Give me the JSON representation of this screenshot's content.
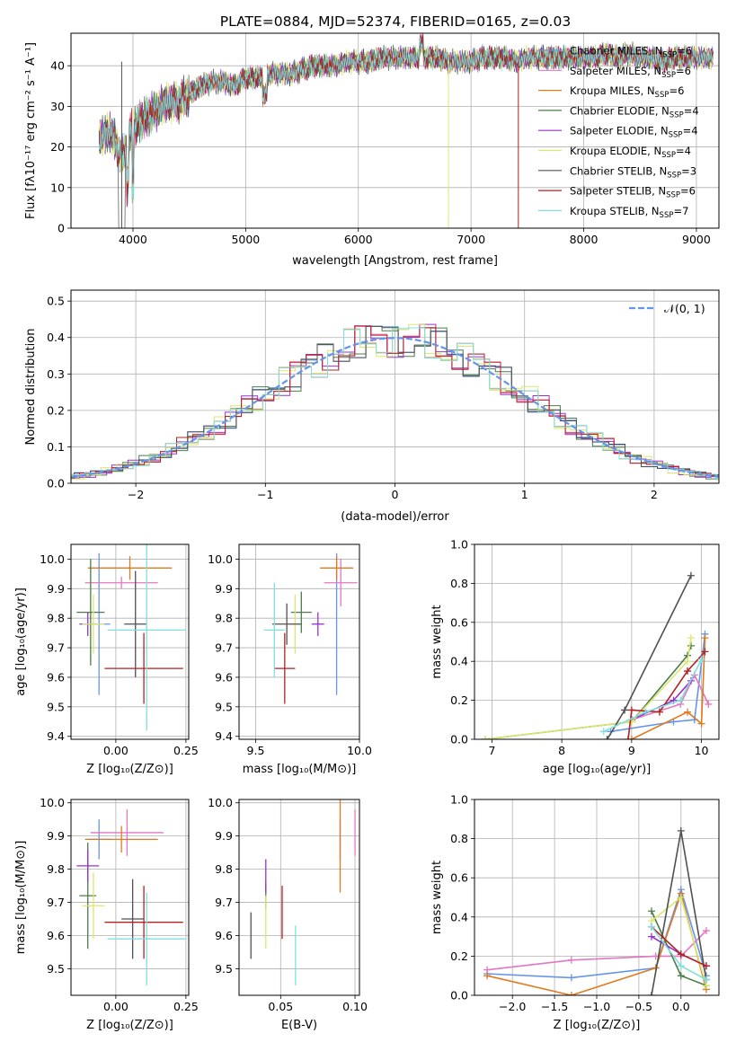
{
  "figure": {
    "title": "PLATE=0884, MJD=52374, FIBERID=0165, z=0.03"
  },
  "colors": {
    "Chabrier MILES": "#6495ed",
    "Salpeter MILES": "#e377c2",
    "Kroupa MILES": "#e07a20",
    "Chabrier ELODIE": "#4a7d4a",
    "Salpeter ELODIE": "#9932cc",
    "Kroupa ELODIE": "#dbe76e",
    "Chabrier STELIB": "#505050",
    "Salpeter STELIB": "#b22222",
    "Kroupa STELIB": "#7fdfdf"
  },
  "chart_data": [
    {
      "type": "line",
      "panel": "spectrum",
      "title": "PLATE=0884, MJD=52374, FIBERID=0165, z=0.03",
      "xlabel": "wavelength [Angstrom, rest frame]",
      "ylabel": "Flux [fλ10⁻¹⁷ erg cm⁻² s⁻¹ A⁻¹]",
      "xlim": [
        3450,
        9200
      ],
      "ylim": [
        0,
        48
      ],
      "xticks": [
        4000,
        5000,
        6000,
        7000,
        8000,
        9000
      ],
      "yticks": [
        0,
        10,
        20,
        30,
        40
      ],
      "legend_position": "top-right",
      "legend": [
        {
          "label": "Chabrier MILES, N",
          "sub": "SSP",
          "suffix": "=6"
        },
        {
          "label": "Salpeter MILES, N",
          "sub": "SSP",
          "suffix": "=6"
        },
        {
          "label": "Kroupa MILES, N",
          "sub": "SSP",
          "suffix": "=6"
        },
        {
          "label": "Chabrier ELODIE, N",
          "sub": "SSP",
          "suffix": "=4"
        },
        {
          "label": "Salpeter ELODIE, N",
          "sub": "SSP",
          "suffix": "=4"
        },
        {
          "label": "Kroupa ELODIE, N",
          "sub": "SSP",
          "suffix": "=4"
        },
        {
          "label": "Chabrier STELIB, N",
          "sub": "SSP",
          "suffix": "=3"
        },
        {
          "label": "Salpeter STELIB, N",
          "sub": "SSP",
          "suffix": "=6"
        },
        {
          "label": "Kroupa STELIB, N",
          "sub": "SSP",
          "suffix": "=7"
        }
      ],
      "series_x": [
        3700,
        3800,
        3900,
        4000,
        4100,
        4200,
        4300,
        4400,
        4500,
        4600,
        4700,
        4800,
        4900,
        5000,
        5100,
        5200,
        5300,
        5400,
        5500,
        5600,
        5700,
        5800,
        5900,
        6000,
        6100,
        6200,
        6300,
        6400,
        6500,
        6600,
        6700,
        6800,
        6900,
        7000,
        7100,
        7200,
        7300,
        7400,
        7500,
        7600,
        7700,
        7800,
        7900,
        8000,
        8100,
        8200,
        8300,
        8400,
        8500,
        8600,
        8700,
        8800,
        8900,
        9000,
        9100
      ],
      "series_y": [
        22,
        24,
        17,
        25,
        27,
        29,
        31,
        31,
        33,
        35,
        36,
        36,
        35,
        37,
        37,
        38,
        38,
        38,
        39,
        40,
        40,
        40,
        41,
        41,
        41,
        42,
        42,
        42,
        42,
        42,
        42,
        41,
        41,
        41,
        42,
        42,
        42,
        41,
        42,
        42,
        42,
        42,
        42,
        42,
        42,
        43,
        42,
        43,
        42,
        42,
        41,
        42,
        42,
        42,
        42
      ],
      "dropouts": [
        {
          "series": "Kroupa ELODIE",
          "x": 6800
        },
        {
          "series": "Salpeter STELIB",
          "x": 7420
        },
        {
          "series": "Chabrier STELIB",
          "x": 3900
        }
      ]
    },
    {
      "type": "line",
      "panel": "residual histogram",
      "xlabel": "(data-model)/error",
      "ylabel": "Normed distribution",
      "xlim": [
        -2.5,
        2.5
      ],
      "ylim": [
        0,
        0.53
      ],
      "xticks": [
        -2,
        -1,
        0,
        1,
        2
      ],
      "yticks": [
        0.0,
        0.1,
        0.2,
        0.3,
        0.4,
        0.5
      ],
      "legend_position": "top-right",
      "legend": [
        {
          "label": "𝒩(0, 1)"
        }
      ],
      "reference_curve": "normal(0,1) density"
    },
    {
      "type": "scatter",
      "panel": "age vs metallicity",
      "xlabel": "Z [log₁₀(Z/Z⊙)]",
      "ylabel": "age  [log₁₀(age/yr)]",
      "xlim": [
        -0.16,
        0.26
      ],
      "ylim": [
        9.39,
        10.05
      ],
      "xticks": [
        0.0,
        0.25
      ],
      "yticks": [
        9.4,
        9.5,
        9.6,
        9.7,
        9.8,
        9.9,
        10.0
      ],
      "points": [
        {
          "series": "Chabrier MILES",
          "x": -0.06,
          "y": 9.78,
          "xerr": 0.04,
          "yerr": 0.24
        },
        {
          "series": "Salpeter MILES",
          "x": 0.02,
          "y": 9.92,
          "xerr": 0.13,
          "yerr": 0.02
        },
        {
          "series": "Kroupa MILES",
          "x": 0.05,
          "y": 9.97,
          "xerr": 0.15,
          "yerr": 0.04
        },
        {
          "series": "Chabrier ELODIE",
          "x": -0.09,
          "y": 9.82,
          "xerr": 0.05,
          "yerr": 0.18
        },
        {
          "series": "Salpeter ELODIE",
          "x": -0.1,
          "y": 9.78,
          "xerr": 0.03,
          "yerr": 0.04
        },
        {
          "series": "Kroupa ELODIE",
          "x": -0.08,
          "y": 9.78,
          "xerr": 0.04,
          "yerr": 0.1
        },
        {
          "series": "Chabrier STELIB",
          "x": 0.07,
          "y": 9.78,
          "xerr": 0.04,
          "yerr": 0.18
        },
        {
          "series": "Salpeter STELIB",
          "x": 0.1,
          "y": 9.63,
          "xerr": 0.14,
          "yerr": 0.12
        },
        {
          "series": "Kroupa STELIB",
          "x": 0.11,
          "y": 9.76,
          "xerr": 0.14,
          "yerr": 0.34
        }
      ]
    },
    {
      "type": "scatter",
      "panel": "age vs mass",
      "xlabel": "mass [log₁₀(M/M⊙)]",
      "ylabel": "",
      "xlim": [
        9.42,
        10.0
      ],
      "ylim": [
        9.39,
        10.05
      ],
      "xticks": [
        9.5,
        10.0
      ],
      "yticks": [
        9.4,
        9.5,
        9.6,
        9.7,
        9.8,
        9.9,
        10.0
      ],
      "points": [
        {
          "series": "Chabrier MILES",
          "x": 9.89,
          "y": 9.78,
          "xerr": 0.0,
          "yerr": 0.24
        },
        {
          "series": "Salpeter MILES",
          "x": 9.91,
          "y": 9.92,
          "xerr": 0.08,
          "yerr": 0.08
        },
        {
          "series": "Kroupa MILES",
          "x": 9.89,
          "y": 9.97,
          "xerr": 0.08,
          "yerr": 0.04
        },
        {
          "series": "Chabrier ELODIE",
          "x": 9.72,
          "y": 9.82,
          "xerr": 0.05,
          "yerr": 0.07
        },
        {
          "series": "Salpeter ELODIE",
          "x": 9.8,
          "y": 9.78,
          "xerr": 0.03,
          "yerr": 0.04
        },
        {
          "series": "Kroupa ELODIE",
          "x": 9.69,
          "y": 9.78,
          "xerr": 0.02,
          "yerr": 0.1
        },
        {
          "series": "Chabrier STELIB",
          "x": 9.65,
          "y": 9.78,
          "xerr": 0.07,
          "yerr": 0.07
        },
        {
          "series": "Salpeter STELIB",
          "x": 9.64,
          "y": 9.63,
          "xerr": 0.05,
          "yerr": 0.12
        },
        {
          "series": "Kroupa STELIB",
          "x": 9.59,
          "y": 9.76,
          "xerr": 0.05,
          "yerr": 0.16
        }
      ]
    },
    {
      "type": "line",
      "panel": "mass weight vs age",
      "xlabel": "age  [log₁₀(age/yr)]",
      "ylabel": "mass weight",
      "xlim": [
        6.75,
        10.25
      ],
      "ylim": [
        0,
        1.0
      ],
      "xticks": [
        7,
        8,
        9,
        10
      ],
      "yticks": [
        0.0,
        0.2,
        0.4,
        0.6,
        0.8,
        1.0
      ],
      "series": [
        {
          "name": "Chabrier MILES",
          "x": [
            8.7,
            9.6,
            9.9,
            10.05
          ],
          "y": [
            0.04,
            0.09,
            0.1,
            0.54
          ]
        },
        {
          "name": "Salpeter MILES",
          "x": [
            9.0,
            9.7,
            9.9,
            10.1
          ],
          "y": [
            0.1,
            0.18,
            0.33,
            0.18
          ]
        },
        {
          "name": "Kroupa MILES",
          "x": [
            9.0,
            9.8,
            10.0,
            10.05
          ],
          "y": [
            0.0,
            0.14,
            0.08,
            0.52
          ]
        },
        {
          "name": "Chabrier ELODIE",
          "x": [
            6.9,
            9.0,
            9.8,
            9.85
          ],
          "y": [
            0.0,
            0.09,
            0.43,
            0.48
          ]
        },
        {
          "name": "Salpeter ELODIE",
          "x": [
            9.0,
            9.6,
            9.85
          ],
          "y": [
            0.1,
            0.2,
            0.3
          ]
        },
        {
          "name": "Kroupa ELODIE",
          "x": [
            6.9,
            9.0,
            9.8,
            9.85
          ],
          "y": [
            0.0,
            0.09,
            0.4,
            0.52
          ]
        },
        {
          "name": "Chabrier STELIB",
          "x": [
            8.65,
            8.9,
            9.85
          ],
          "y": [
            0.0,
            0.15,
            0.84
          ]
        },
        {
          "name": "Salpeter STELIB",
          "x": [
            8.95,
            9.0,
            9.4,
            9.8,
            10.05
          ],
          "y": [
            0.0,
            0.15,
            0.14,
            0.35,
            0.45
          ]
        },
        {
          "name": "Kroupa STELIB",
          "x": [
            8.6,
            9.2,
            9.7,
            10.0
          ],
          "y": [
            0.04,
            0.14,
            0.2,
            0.41
          ]
        }
      ]
    },
    {
      "type": "scatter",
      "panel": "mass vs metallicity",
      "xlabel": "Z [log₁₀(Z/Z⊙)]",
      "ylabel": "mass [log₁₀(M/M⊙)]",
      "xlim": [
        -0.16,
        0.26
      ],
      "ylim": [
        9.42,
        10.01
      ],
      "xticks": [
        0.0,
        0.25
      ],
      "yticks": [
        9.5,
        9.6,
        9.7,
        9.8,
        9.9,
        10.0
      ],
      "points": [
        {
          "series": "Chabrier MILES",
          "x": -0.06,
          "y": 9.89,
          "xerr": 0.04,
          "yerr": 0.06
        },
        {
          "series": "Salpeter MILES",
          "x": 0.04,
          "y": 9.91,
          "xerr": 0.13,
          "yerr": 0.07
        },
        {
          "series": "Kroupa MILES",
          "x": 0.02,
          "y": 9.89,
          "xerr": 0.13,
          "yerr": 0.04
        },
        {
          "series": "Chabrier ELODIE",
          "x": -0.1,
          "y": 9.72,
          "xerr": 0.03,
          "yerr": 0.16
        },
        {
          "series": "Salpeter ELODIE",
          "x": -0.1,
          "y": 9.81,
          "xerr": 0.04,
          "yerr": 0.05
        },
        {
          "series": "Kroupa ELODIE",
          "x": -0.08,
          "y": 9.69,
          "xerr": 0.04,
          "yerr": 0.1
        },
        {
          "series": "Chabrier STELIB",
          "x": 0.06,
          "y": 9.65,
          "xerr": 0.04,
          "yerr": 0.12
        },
        {
          "series": "Salpeter STELIB",
          "x": 0.1,
          "y": 9.64,
          "xerr": 0.14,
          "yerr": 0.11
        },
        {
          "series": "Kroupa STELIB",
          "x": 0.11,
          "y": 9.59,
          "xerr": 0.14,
          "yerr": 0.14
        }
      ]
    },
    {
      "type": "scatter",
      "panel": "mass vs extinction",
      "xlabel": "E(B-V)",
      "ylabel": "",
      "xlim": [
        0.022,
        0.103
      ],
      "ylim": [
        9.42,
        10.01
      ],
      "xticks": [
        0.05,
        0.1
      ],
      "yticks": [
        9.5,
        9.6,
        9.7,
        9.8,
        9.9,
        10.0
      ],
      "points": [
        {
          "series": "Chabrier MILES",
          "x": 0.09,
          "y": 9.89,
          "yerr": 0.06
        },
        {
          "series": "Salpeter MILES",
          "x": 0.1,
          "y": 9.91,
          "yerr": 0.07
        },
        {
          "series": "Kroupa MILES",
          "x": 0.09,
          "y": 9.89,
          "yerr": 0.16
        },
        {
          "series": "Chabrier ELODIE",
          "x": 0.04,
          "y": 9.72,
          "yerr": 0.04
        },
        {
          "series": "Salpeter ELODIE",
          "x": 0.04,
          "y": 9.78,
          "yerr": 0.05
        },
        {
          "series": "Kroupa ELODIE",
          "x": 0.04,
          "y": 9.64,
          "yerr": 0.08
        },
        {
          "series": "Chabrier STELIB",
          "x": 0.03,
          "y": 9.6,
          "yerr": 0.07
        },
        {
          "series": "Salpeter STELIB",
          "x": 0.051,
          "y": 9.67,
          "yerr": 0.08
        },
        {
          "series": "Kroupa STELIB",
          "x": 0.06,
          "y": 9.54,
          "yerr": 0.09
        }
      ]
    },
    {
      "type": "line",
      "panel": "mass weight vs metallicity",
      "xlabel": "Z [log₁₀(Z/Z⊙)]",
      "ylabel": "mass weight",
      "xlim": [
        -2.45,
        0.45
      ],
      "ylim": [
        0,
        1.0
      ],
      "xticks": [
        -2.0,
        -1.5,
        -1.0,
        -0.5,
        0.0
      ],
      "yticks": [
        0.0,
        0.2,
        0.4,
        0.6,
        0.8,
        1.0
      ],
      "series": [
        {
          "name": "Chabrier MILES",
          "x": [
            -2.3,
            -1.3,
            -0.3,
            0.0,
            0.3
          ],
          "y": [
            0.11,
            0.09,
            0.14,
            0.54,
            0.1
          ]
        },
        {
          "name": "Salpeter MILES",
          "x": [
            -2.3,
            -1.3,
            -0.3,
            0.0,
            0.3
          ],
          "y": [
            0.13,
            0.18,
            0.2,
            0.2,
            0.33
          ]
        },
        {
          "name": "Kroupa MILES",
          "x": [
            -2.3,
            -1.3,
            -0.3,
            0.0,
            0.3
          ],
          "y": [
            0.1,
            0.0,
            0.14,
            0.52,
            0.03
          ]
        },
        {
          "name": "Chabrier ELODIE",
          "x": [
            -0.35,
            0.0,
            0.3
          ],
          "y": [
            0.43,
            0.1,
            0.05
          ]
        },
        {
          "name": "Salpeter ELODIE",
          "x": [
            -0.35,
            0.0,
            0.3
          ],
          "y": [
            0.3,
            0.21,
            0.15
          ]
        },
        {
          "name": "Kroupa ELODIE",
          "x": [
            -0.35,
            0.0,
            0.3
          ],
          "y": [
            0.38,
            0.5,
            0.05
          ]
        },
        {
          "name": "Chabrier STELIB",
          "x": [
            -0.35,
            0.0,
            0.3
          ],
          "y": [
            0.0,
            0.84,
            0.08
          ]
        },
        {
          "name": "Salpeter STELIB",
          "x": [
            -0.35,
            0.0,
            0.3
          ],
          "y": [
            0.35,
            0.21,
            0.15
          ]
        },
        {
          "name": "Kroupa STELIB",
          "x": [
            -0.35,
            0.0,
            0.3
          ],
          "y": [
            0.35,
            0.15,
            0.08
          ]
        }
      ]
    }
  ]
}
